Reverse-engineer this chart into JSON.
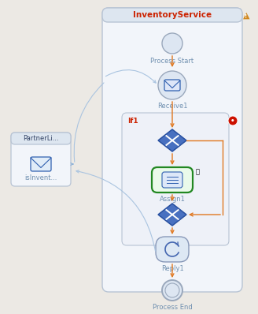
{
  "bg_color": "#ece9e4",
  "main_panel_color": "#f2f5fa",
  "main_panel_border": "#b8c4d4",
  "main_panel_header_color": "#dde6f0",
  "title_text": "InventoryService",
  "title_color": "#cc2200",
  "title_font_size": 7.5,
  "partner_panel_color": "#f2f5fa",
  "partner_panel_border": "#b8c4d4",
  "partner_label": "PartnerLi...",
  "partner_sublabel": "isInvent...",
  "if_box_color": "#eef1f8",
  "if_box_border": "#b8c4d4",
  "if_label": "If1",
  "if_label_color": "#cc2200",
  "flow_color_orange": "#e07820",
  "flow_color_blue": "#aac4e0",
  "node_color": "#dde8f4",
  "node_border": "#8898b8",
  "assign_bg": "#eafaea",
  "assign_border": "#228822",
  "receive_icon_color": "#3060b0",
  "reply_icon_color": "#4466b0",
  "assign_icon_color": "#3060b0",
  "warning_color": "#d08820",
  "error_color": "#cc2200",
  "process_start_label": "Process Start",
  "receive_label": "Receive1",
  "assign_label": "Assign1",
  "reply_label": "Reply1",
  "process_end_label": "Process End",
  "label_color": "#7090b0",
  "label_fontsize": 6.0,
  "diamond_color": "#4870c0",
  "diamond_border": "#2850a0",
  "cross_color": "#ffffff"
}
